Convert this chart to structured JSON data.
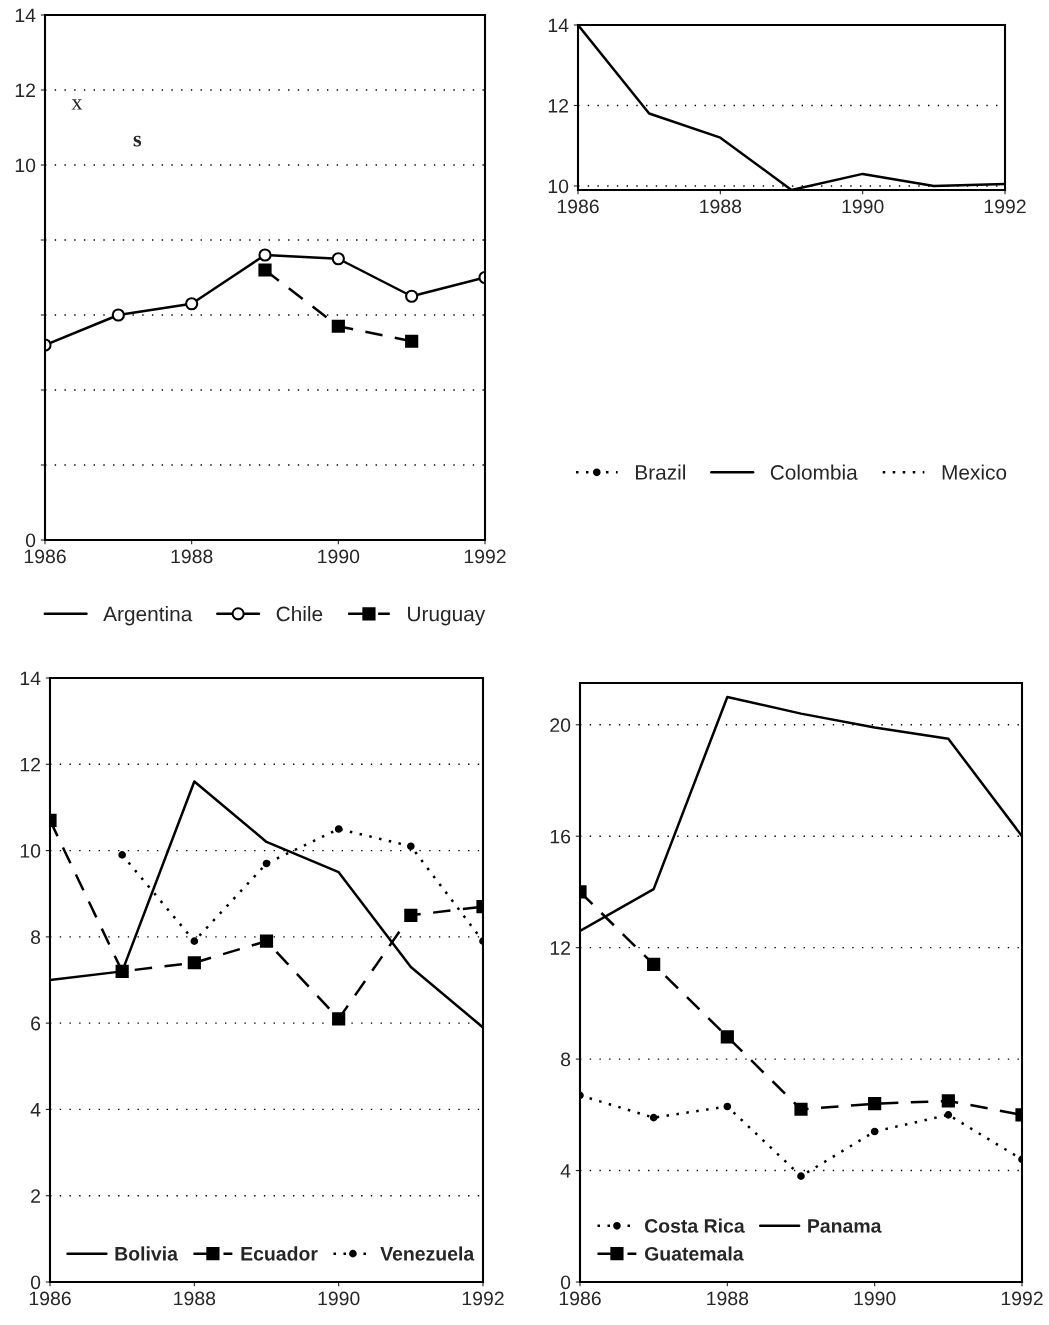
{
  "chart_data": [
    {
      "type": "line",
      "x": [
        1986,
        1987,
        1988,
        1989,
        1990,
        1991,
        1992
      ],
      "xlim": [
        1986,
        1992
      ],
      "xticks": [
        1986,
        1988,
        1990,
        1992
      ],
      "ylim": [
        0,
        14
      ],
      "yticks": [
        0,
        {
          "value": 2,
          "label": null
        },
        {
          "value": 4,
          "label": null
        },
        {
          "value": 6,
          "label": null
        },
        {
          "value": 8,
          "label": null
        },
        10,
        12,
        14
      ],
      "grid": "y",
      "legend": "bottom",
      "annotations": [
        "x",
        "s"
      ],
      "series": [
        {
          "name": "Argentina",
          "color": "#000000",
          "line_style": "solid",
          "marker": "none",
          "values": [
            null,
            null,
            null,
            null,
            null,
            null,
            null
          ]
        },
        {
          "name": "Chile",
          "color": "#000000",
          "line_style": "solid",
          "marker": "circle",
          "values": [
            5.2,
            6.0,
            6.3,
            7.6,
            7.5,
            6.5,
            7.0
          ]
        },
        {
          "name": "Uruguay",
          "color": "#000000",
          "line_style": "dashed",
          "marker": "square",
          "values": [
            null,
            null,
            null,
            7.2,
            5.7,
            5.3,
            null
          ]
        }
      ]
    },
    {
      "type": "line",
      "x": [
        1986,
        1987,
        1988,
        1989,
        1990,
        1991,
        1992
      ],
      "xlim": [
        1986,
        1992
      ],
      "xticks": [
        1986,
        1988,
        1990,
        1992
      ],
      "ylim": [
        9.9,
        14
      ],
      "yticks": [
        10,
        12,
        14
      ],
      "grid": "y",
      "legend": "bottom",
      "series": [
        {
          "name": "Brazil",
          "color": "#000000",
          "line_style": "dotted",
          "marker": "circle",
          "values": [
            null,
            null,
            null,
            null,
            null,
            null,
            null
          ]
        },
        {
          "name": "Colombia",
          "color": "#000000",
          "line_style": "solid",
          "marker": "none",
          "values": [
            14.0,
            11.8,
            11.2,
            9.9,
            10.3,
            10.0,
            10.05
          ]
        },
        {
          "name": "Mexico",
          "color": "#000000",
          "line_style": "dotted",
          "marker": "none",
          "values": [
            null,
            null,
            null,
            null,
            null,
            null,
            null
          ]
        }
      ]
    },
    {
      "type": "line",
      "x": [
        1986,
        1987,
        1988,
        1989,
        1990,
        1991,
        1992
      ],
      "xlim": [
        1986,
        1992
      ],
      "xticks": [
        1986,
        1988,
        1990,
        1992
      ],
      "ylim": [
        0,
        14
      ],
      "yticks": [
        0,
        2,
        4,
        6,
        8,
        10,
        12,
        14
      ],
      "grid": "y",
      "legend": "bottom left",
      "series": [
        {
          "name": "Bolivia",
          "color": "#000000",
          "line_style": "solid",
          "marker": "none",
          "values": [
            7.0,
            7.2,
            11.6,
            10.2,
            9.5,
            7.3,
            5.9
          ]
        },
        {
          "name": "Ecuador",
          "color": "#000000",
          "line_style": "dashed",
          "marker": "square",
          "values": [
            10.7,
            7.2,
            7.4,
            7.9,
            6.1,
            8.5,
            8.7
          ]
        },
        {
          "name": "Venezuela",
          "color": "#000000",
          "line_style": "dotted",
          "marker": "circle",
          "values": [
            null,
            9.9,
            7.9,
            9.7,
            10.5,
            10.1,
            7.9
          ]
        }
      ]
    },
    {
      "type": "line",
      "x": [
        1986,
        1987,
        1988,
        1989,
        1990,
        1991,
        1992
      ],
      "xlim": [
        1986,
        1992
      ],
      "xticks": [
        1986,
        1988,
        1990,
        1992
      ],
      "ylim": [
        0,
        21.5
      ],
      "yticks": [
        0,
        4,
        8,
        12,
        16,
        20
      ],
      "grid": "y",
      "legend": "bottom left",
      "series": [
        {
          "name": "Costa Rica",
          "color": "#000000",
          "line_style": "dotted",
          "marker": "circle",
          "values": [
            6.7,
            5.9,
            6.3,
            3.8,
            5.4,
            6.0,
            4.4
          ]
        },
        {
          "name": "Guatemala",
          "color": "#000000",
          "line_style": "dashed",
          "marker": "square",
          "values": [
            14.0,
            11.4,
            8.8,
            6.2,
            6.4,
            6.5,
            6.0
          ]
        },
        {
          "name": "Panama",
          "color": "#000000",
          "line_style": "solid",
          "marker": "none",
          "values": [
            12.6,
            14.1,
            21.0,
            20.4,
            19.9,
            19.5,
            16.0
          ]
        }
      ]
    }
  ]
}
